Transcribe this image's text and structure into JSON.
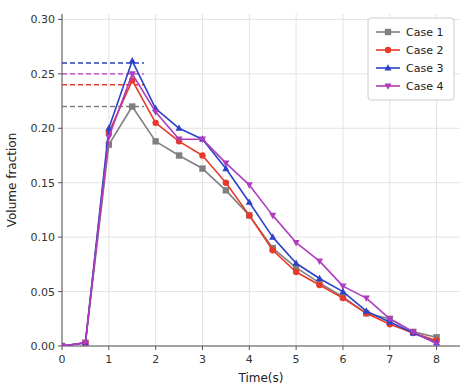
{
  "chart_data": {
    "type": "line",
    "xlabel": "Time(s)",
    "ylabel": "Volume fraction",
    "x": [
      0,
      0.5,
      1.0,
      1.5,
      2.0,
      2.5,
      3.0,
      3.5,
      4.0,
      4.5,
      5.0,
      5.5,
      6.0,
      6.5,
      7.0,
      7.5,
      8.0
    ],
    "series": [
      {
        "name": "Case 1",
        "color": "#7f7f7f",
        "marker": "square",
        "reference_y": 0.22,
        "values": [
          0.0,
          0.003,
          0.185,
          0.22,
          0.188,
          0.175,
          0.163,
          0.143,
          0.12,
          0.09,
          0.072,
          0.058,
          0.045,
          0.03,
          0.025,
          0.013,
          0.008
        ]
      },
      {
        "name": "Case 2",
        "color": "#e8392a",
        "marker": "circle",
        "reference_y": 0.24,
        "values": [
          0.0,
          0.003,
          0.196,
          0.244,
          0.205,
          0.188,
          0.175,
          0.15,
          0.12,
          0.088,
          0.068,
          0.056,
          0.044,
          0.03,
          0.02,
          0.012,
          0.005
        ]
      },
      {
        "name": "Case 3",
        "color": "#2b41c8",
        "marker": "triangle-up",
        "reference_y": 0.26,
        "values": [
          0.0,
          0.003,
          0.2,
          0.262,
          0.218,
          0.2,
          0.19,
          0.163,
          0.132,
          0.1,
          0.076,
          0.062,
          0.05,
          0.032,
          0.022,
          0.012,
          0.003
        ]
      },
      {
        "name": "Case 4",
        "color": "#b03cbe",
        "marker": "triangle-down",
        "reference_y": 0.25,
        "values": [
          0.0,
          0.003,
          0.192,
          0.25,
          0.215,
          0.19,
          0.19,
          0.168,
          0.148,
          0.12,
          0.095,
          0.078,
          0.055,
          0.044,
          0.025,
          0.013,
          0.002
        ]
      }
    ],
    "reference_xmax": 1.75,
    "xlim": [
      0,
      8.5
    ],
    "ylim": [
      0.0,
      0.305
    ],
    "xticks": [
      0,
      1,
      2,
      3,
      4,
      5,
      6,
      7,
      8
    ],
    "yticks": [
      {
        "value": 0.0,
        "label": "0.00"
      },
      {
        "value": 0.05,
        "label": "0.05"
      },
      {
        "value": 0.1,
        "label": "0.10"
      },
      {
        "value": 0.15,
        "label": "0.15"
      },
      {
        "value": 0.2,
        "label": "0.20"
      },
      {
        "value": 0.25,
        "label": "0.25"
      },
      {
        "value": 0.3,
        "label": "0.30"
      }
    ],
    "grid": true,
    "legend": "upper right"
  }
}
